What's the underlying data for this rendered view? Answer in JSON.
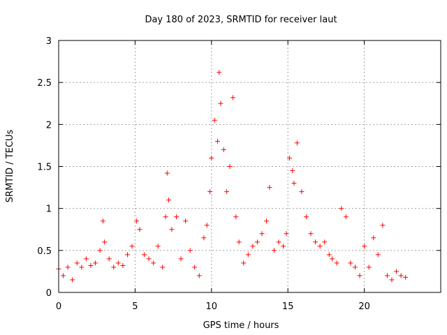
{
  "chart_data": {
    "type": "scatter",
    "title": "Day 180 of 2023, SRMTID for receiver laut",
    "xlabel": "GPS time / hours",
    "ylabel": "SRMTID / TECUs",
    "xlim": [
      0,
      25
    ],
    "ylim": [
      0,
      3
    ],
    "xticks": [
      0,
      5,
      10,
      15,
      20
    ],
    "yticks": [
      0,
      0.5,
      1,
      1.5,
      2,
      2.5,
      3
    ],
    "xtick_labels": [
      "0",
      "5",
      "10",
      "15",
      "20"
    ],
    "ytick_labels": [
      "0",
      "0.5",
      "1",
      "1.5",
      "2",
      "2.5",
      "3"
    ],
    "grid": true,
    "marker": "+",
    "colors": {
      "series": "#ff0000",
      "grid": "#a0a0a0",
      "axis": "#000000"
    },
    "series": [
      {
        "name": "SRMTID",
        "x": [
          0.0,
          0.3,
          0.6,
          0.9,
          1.2,
          1.5,
          1.8,
          2.1,
          2.4,
          2.7,
          2.9,
          3.0,
          3.3,
          3.6,
          3.9,
          4.2,
          4.5,
          4.8,
          5.1,
          5.3,
          5.6,
          5.9,
          6.2,
          6.5,
          6.8,
          7.0,
          7.1,
          7.2,
          7.4,
          7.7,
          8.0,
          8.3,
          8.6,
          8.9,
          9.2,
          9.5,
          9.7,
          9.9,
          10.0,
          10.2,
          10.4,
          10.5,
          10.6,
          10.8,
          11.0,
          11.2,
          11.4,
          11.6,
          11.8,
          12.1,
          12.4,
          12.7,
          13.0,
          13.3,
          13.6,
          13.8,
          14.1,
          14.4,
          14.7,
          14.9,
          15.1,
          15.3,
          15.4,
          15.6,
          15.9,
          16.2,
          16.5,
          16.8,
          17.1,
          17.4,
          17.7,
          17.9,
          18.2,
          18.5,
          18.8,
          19.1,
          19.4,
          19.7,
          20.0,
          20.3,
          20.6,
          20.9,
          21.2,
          21.5,
          21.8,
          22.1,
          22.4,
          22.7
        ],
        "y": [
          0.28,
          0.2,
          0.3,
          0.15,
          0.35,
          0.3,
          0.4,
          0.32,
          0.35,
          0.5,
          0.85,
          0.6,
          0.4,
          0.3,
          0.35,
          0.32,
          0.45,
          0.55,
          0.85,
          0.75,
          0.45,
          0.4,
          0.35,
          0.55,
          0.3,
          0.9,
          1.42,
          1.1,
          0.75,
          0.9,
          0.4,
          0.85,
          0.5,
          0.3,
          0.2,
          0.65,
          0.8,
          1.2,
          1.6,
          2.05,
          1.8,
          2.62,
          2.25,
          1.7,
          1.2,
          1.5,
          2.32,
          0.9,
          0.6,
          0.35,
          0.45,
          0.55,
          0.6,
          0.7,
          0.85,
          1.25,
          0.5,
          0.6,
          0.55,
          0.7,
          1.6,
          1.45,
          1.3,
          1.78,
          1.2,
          0.9,
          0.7,
          0.6,
          0.55,
          0.6,
          0.45,
          0.4,
          0.35,
          1.0,
          0.9,
          0.35,
          0.3,
          0.2,
          0.55,
          0.3,
          0.65,
          0.45,
          0.8,
          0.2,
          0.15,
          0.25,
          0.2,
          0.18
        ]
      }
    ]
  }
}
